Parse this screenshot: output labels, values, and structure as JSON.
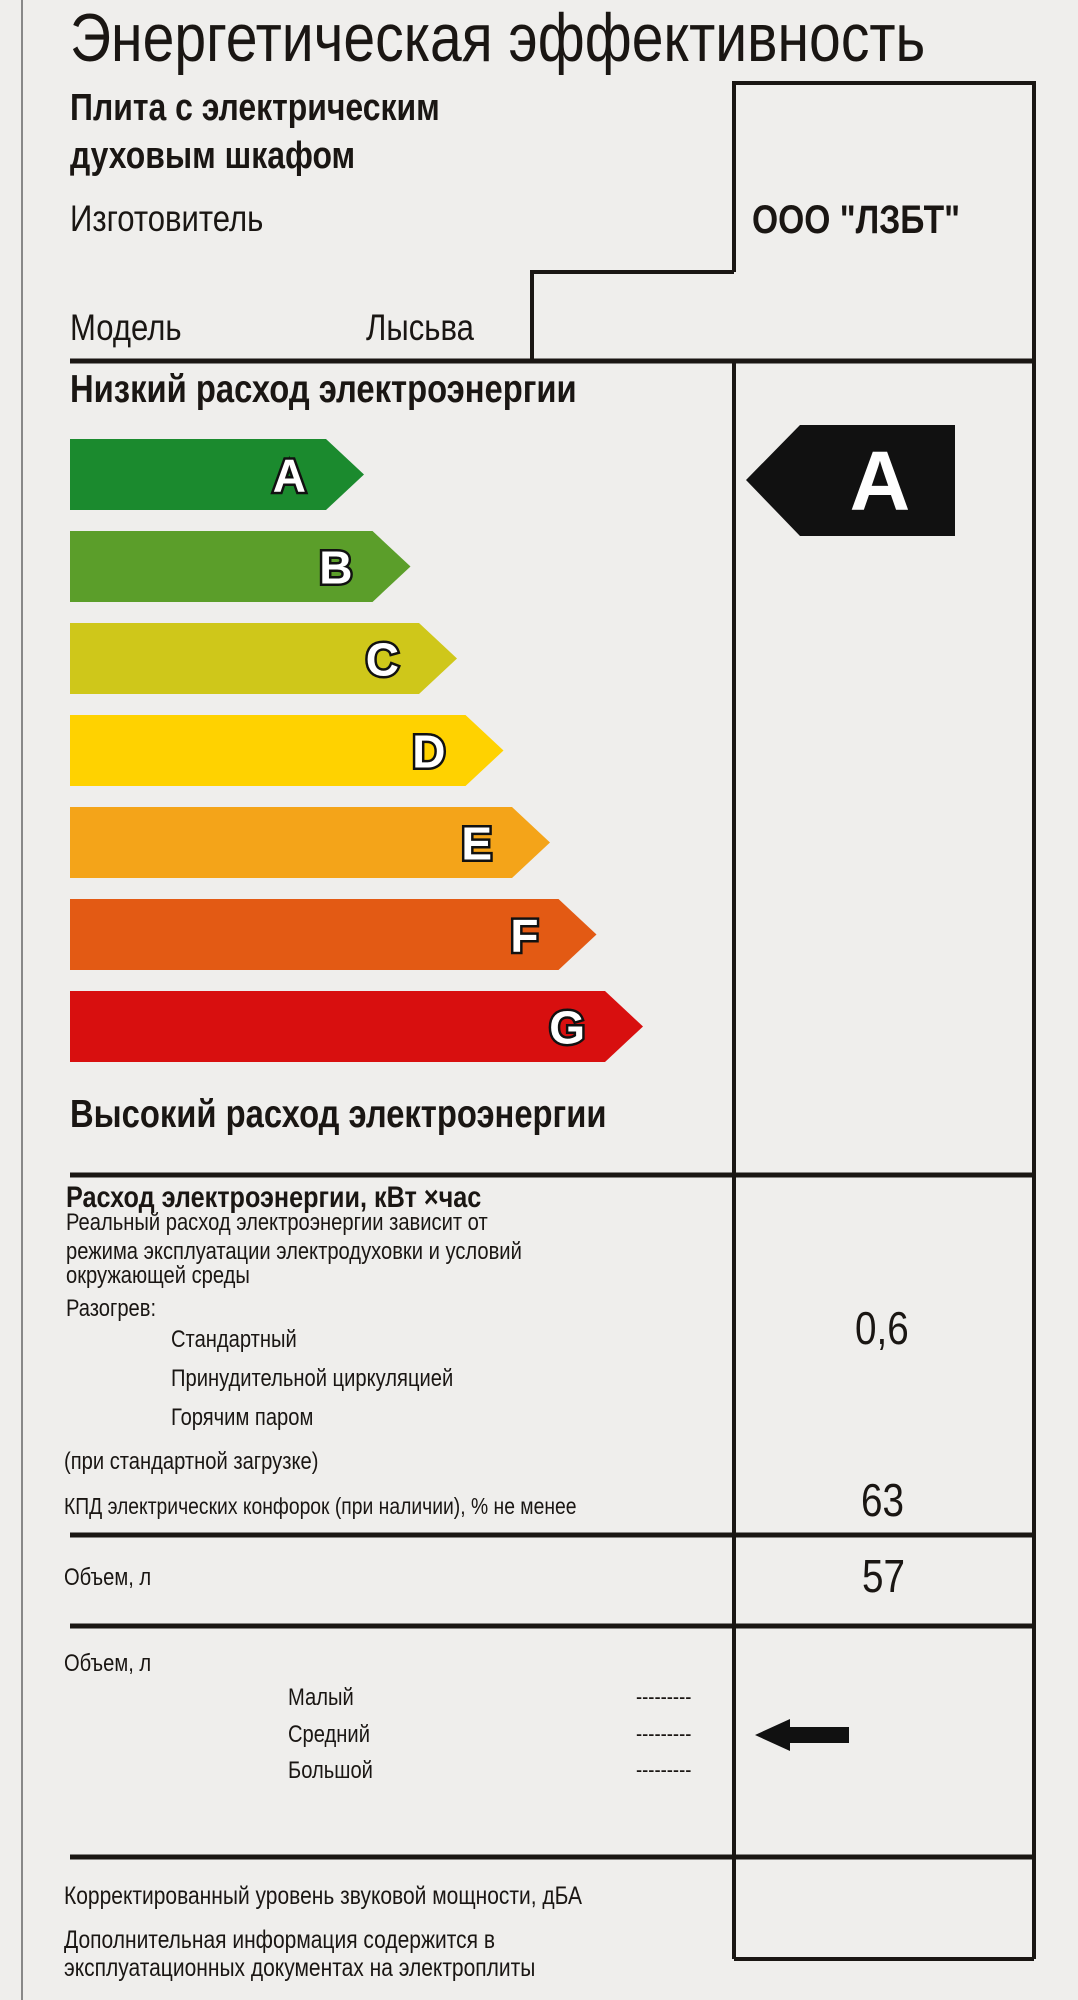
{
  "title": "Энергетическая эффективность",
  "product": {
    "line1": "Плита с электрическим",
    "line2": "духовым шкафом"
  },
  "manufacturer": {
    "label": "Изготовитель",
    "value": "ООО \"ЛЗБТ\""
  },
  "model": {
    "label": "Модель",
    "value": "Лысьва"
  },
  "scale": {
    "low_label": "Низкий расход электроэнергии",
    "high_label": "Высокий расход электроэнергии",
    "classes": [
      {
        "letter": "A",
        "color": "#1b8a2e"
      },
      {
        "letter": "B",
        "color": "#5b9e2a"
      },
      {
        "letter": "C",
        "color": "#cfc71a"
      },
      {
        "letter": "D",
        "color": "#ffd200"
      },
      {
        "letter": "E",
        "color": "#f4a419"
      },
      {
        "letter": "F",
        "color": "#e35a14"
      },
      {
        "letter": "G",
        "color": "#d80f0f"
      }
    ],
    "rating": "A"
  },
  "consumption": {
    "heading": "Расход электроэнергии, кВт ×час",
    "note_lines": [
      "Реальный расход электроэнергии зависит от",
      "режима эксплуатации электродуховки и условий",
      "окружающей среды"
    ],
    "heating_label": "Разогрев:",
    "modes": [
      "Стандартный",
      "Принудительной циркуляцией",
      "Горячим паром"
    ],
    "value": "0,6",
    "load_note": "(при стандартной загрузке)",
    "efficiency_label": "КПД электрических конфорок (при наличии), % не менее",
    "efficiency_value": "63"
  },
  "volume": {
    "label": "Объем, л",
    "value": "57"
  },
  "volume_size": {
    "label": "Объем, л",
    "sizes": [
      {
        "name": "Малый",
        "dashes": "---------"
      },
      {
        "name": "Средний",
        "dashes": "---------"
      },
      {
        "name": "Большой",
        "dashes": "---------"
      }
    ],
    "selected": "Средний"
  },
  "noise": {
    "label": "Корректированный уровень звуковой мощности, дБА"
  },
  "footer": {
    "line1": "Дополнительная информация содержится в",
    "line2": "эксплуатационных документах на электроплиты"
  }
}
